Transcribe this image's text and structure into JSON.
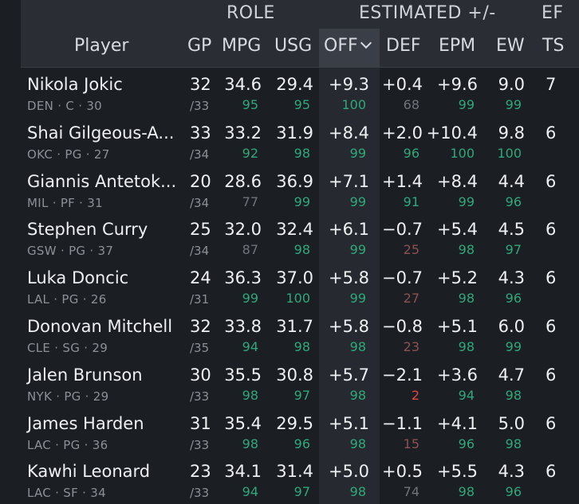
{
  "groups": {
    "role": "ROLE",
    "estimated": "ESTIMATED +/-",
    "cutoff": "EF"
  },
  "columns": {
    "player": "Player",
    "gp": "GP",
    "mpg": "MPG",
    "usg": "USG",
    "off": "OFF",
    "def": "DEF",
    "epm": "EPM",
    "ew": "EW",
    "ts": "TS"
  },
  "sorted_column": "off",
  "sort_icon": "chevron-down-icon",
  "colors": {
    "pct_green": "#2fa87a",
    "pct_gray": "#6f747b",
    "pct_red": "#e0483d",
    "pct_darkred": "#8a5250"
  },
  "rows": [
    {
      "name": "Nikola Jokic",
      "meta": "DEN · C · 30",
      "gp": "32",
      "gp_total": "/33",
      "mpg": "34.6",
      "mpg_pct": "95",
      "usg": "29.4",
      "usg_pct": "95",
      "off": "+9.3",
      "off_pct": "100",
      "def": "+0.4",
      "def_pct": "68",
      "epm": "+9.6",
      "epm_pct": "99",
      "ew": "9.0",
      "ew_pct": "99",
      "ts": "7"
    },
    {
      "name": "Shai Gilgeous-A...",
      "meta": "OKC · PG · 27",
      "gp": "33",
      "gp_total": "/34",
      "mpg": "33.2",
      "mpg_pct": "92",
      "usg": "31.9",
      "usg_pct": "98",
      "off": "+8.4",
      "off_pct": "99",
      "def": "+2.0",
      "def_pct": "96",
      "epm": "+10.4",
      "epm_pct": "100",
      "ew": "9.8",
      "ew_pct": "100",
      "ts": "6"
    },
    {
      "name": "Giannis Antetok...",
      "meta": "MIL · PF · 31",
      "gp": "20",
      "gp_total": "/34",
      "mpg": "28.6",
      "mpg_pct": "77",
      "usg": "36.9",
      "usg_pct": "99",
      "off": "+7.1",
      "off_pct": "99",
      "def": "+1.4",
      "def_pct": "91",
      "epm": "+8.4",
      "epm_pct": "99",
      "ew": "4.4",
      "ew_pct": "96",
      "ts": "6"
    },
    {
      "name": "Stephen Curry",
      "meta": "GSW · PG · 37",
      "gp": "25",
      "gp_total": "/34",
      "mpg": "32.0",
      "mpg_pct": "87",
      "usg": "32.4",
      "usg_pct": "98",
      "off": "+6.1",
      "off_pct": "99",
      "def": "−0.7",
      "def_pct": "25",
      "epm": "+5.4",
      "epm_pct": "98",
      "ew": "4.5",
      "ew_pct": "97",
      "ts": "6"
    },
    {
      "name": "Luka Doncic",
      "meta": "LAL · PG · 26",
      "gp": "24",
      "gp_total": "/31",
      "mpg": "36.3",
      "mpg_pct": "99",
      "usg": "37.0",
      "usg_pct": "100",
      "off": "+5.8",
      "off_pct": "99",
      "def": "−0.7",
      "def_pct": "27",
      "epm": "+5.2",
      "epm_pct": "98",
      "ew": "4.3",
      "ew_pct": "96",
      "ts": "6"
    },
    {
      "name": "Donovan Mitchell",
      "meta": "CLE · SG · 29",
      "gp": "32",
      "gp_total": "/35",
      "mpg": "33.8",
      "mpg_pct": "94",
      "usg": "31.7",
      "usg_pct": "98",
      "off": "+5.8",
      "off_pct": "98",
      "def": "−0.8",
      "def_pct": "23",
      "epm": "+5.1",
      "epm_pct": "98",
      "ew": "6.0",
      "ew_pct": "99",
      "ts": "6"
    },
    {
      "name": "Jalen Brunson",
      "meta": "NYK · PG · 29",
      "gp": "30",
      "gp_total": "/33",
      "mpg": "35.5",
      "mpg_pct": "98",
      "usg": "30.8",
      "usg_pct": "97",
      "off": "+5.7",
      "off_pct": "98",
      "def": "−2.1",
      "def_pct": "2",
      "epm": "+3.6",
      "epm_pct": "94",
      "ew": "4.7",
      "ew_pct": "98",
      "ts": "6"
    },
    {
      "name": "James Harden",
      "meta": "LAC · PG · 36",
      "gp": "31",
      "gp_total": "/33",
      "mpg": "35.4",
      "mpg_pct": "98",
      "usg": "29.5",
      "usg_pct": "96",
      "off": "+5.1",
      "off_pct": "98",
      "def": "−1.1",
      "def_pct": "15",
      "epm": "+4.1",
      "epm_pct": "96",
      "ew": "5.0",
      "ew_pct": "98",
      "ts": "6"
    },
    {
      "name": "Kawhi Leonard",
      "meta": "LAC · SF · 34",
      "gp": "23",
      "gp_total": "/33",
      "mpg": "34.1",
      "mpg_pct": "94",
      "usg": "31.4",
      "usg_pct": "97",
      "off": "+5.0",
      "off_pct": "98",
      "def": "+0.5",
      "def_pct": "74",
      "epm": "+5.5",
      "epm_pct": "98",
      "ew": "4.3",
      "ew_pct": "96",
      "ts": "6"
    }
  ]
}
